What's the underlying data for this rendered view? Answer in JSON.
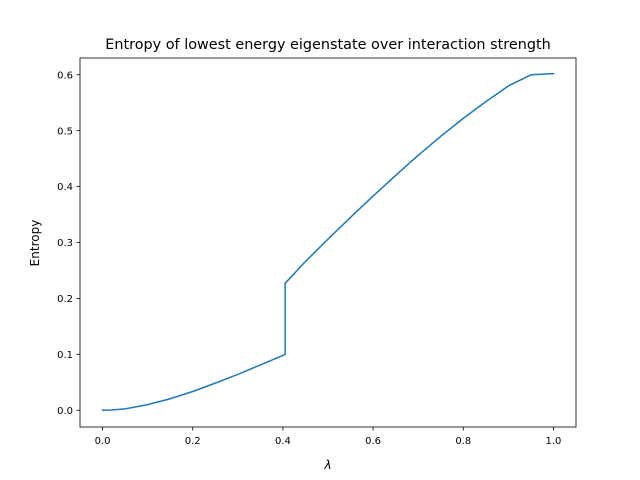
{
  "chart_data": {
    "type": "line",
    "title": "Entropy of lowest energy eigenstate over interaction strength",
    "xlabel": "λ",
    "ylabel": "Entropy",
    "xlim": [
      -0.05,
      1.05
    ],
    "ylim": [
      -0.03,
      0.63
    ],
    "xticks": [
      0.0,
      0.2,
      0.4,
      0.6,
      0.8,
      1.0
    ],
    "xtick_labels": [
      "0.0",
      "0.2",
      "0.4",
      "0.6",
      "0.8",
      "1.0"
    ],
    "yticks": [
      0.0,
      0.1,
      0.2,
      0.3,
      0.4,
      0.5,
      0.6
    ],
    "ytick_labels": [
      "0.0",
      "0.1",
      "0.2",
      "0.3",
      "0.4",
      "0.5",
      "0.6"
    ],
    "grid": false,
    "legend": "none",
    "series_color": "#1f77b4",
    "series": [
      {
        "x": [
          0.0,
          0.02,
          0.05,
          0.1,
          0.15,
          0.2,
          0.25,
          0.3,
          0.35,
          0.4,
          0.405,
          0.405,
          0.45,
          0.5,
          0.55,
          0.6,
          0.65,
          0.7,
          0.75,
          0.8,
          0.85,
          0.9,
          0.95,
          1.0
        ],
        "y": [
          0.0,
          0.0004,
          0.0025,
          0.01,
          0.0205,
          0.0335,
          0.0485,
          0.064,
          0.081,
          0.098,
          0.1,
          0.227,
          0.266,
          0.306,
          0.345,
          0.383,
          0.42,
          0.456,
          0.49,
          0.522,
          0.552,
          0.58,
          0.6,
          0.602
        ]
      }
    ]
  }
}
